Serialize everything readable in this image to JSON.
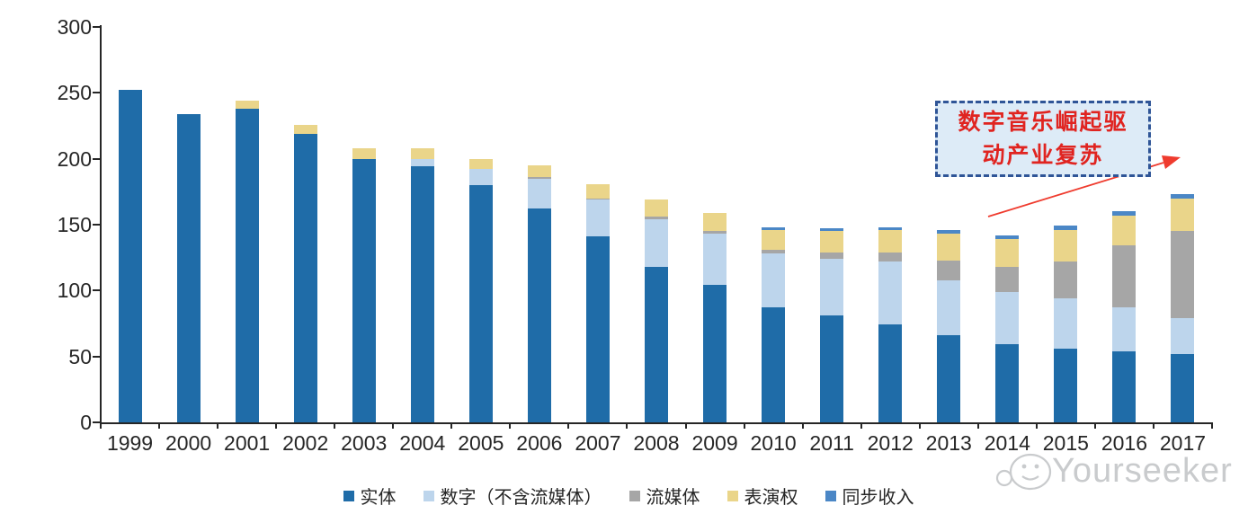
{
  "chart_data": {
    "type": "bar",
    "stacked": true,
    "title": "",
    "xlabel": "",
    "ylabel": "",
    "ylim": [
      0,
      300
    ],
    "yticks": [
      0,
      50,
      100,
      150,
      200,
      250,
      300
    ],
    "grid": false,
    "legend_position": "bottom",
    "categories": [
      "1999",
      "2000",
      "2001",
      "2002",
      "2003",
      "2004",
      "2005",
      "2006",
      "2007",
      "2008",
      "2009",
      "2010",
      "2011",
      "2012",
      "2013",
      "2014",
      "2015",
      "2016",
      "2017"
    ],
    "series": [
      {
        "name": "实体",
        "color": "#1F6CA8",
        "values": [
          252,
          234,
          238,
          219,
          200,
          194,
          180,
          162,
          141,
          118,
          104,
          87,
          81,
          74,
          66,
          59,
          56,
          54,
          52
        ]
      },
      {
        "name": "数字（不含流媒体）",
        "color": "#BDD5EC",
        "values": [
          0,
          0,
          0,
          0,
          0,
          6,
          12,
          23,
          28,
          36,
          39,
          41,
          43,
          48,
          42,
          40,
          38,
          33,
          27
        ]
      },
      {
        "name": "流媒体",
        "color": "#A6A6A6",
        "values": [
          0,
          0,
          0,
          0,
          0,
          0,
          0,
          1,
          1,
          2,
          2,
          3,
          5,
          7,
          15,
          19,
          28,
          47,
          66
        ]
      },
      {
        "name": "表演权",
        "color": "#EAD58A",
        "values": [
          0,
          0,
          6,
          7,
          8,
          8,
          8,
          9,
          11,
          13,
          14,
          15,
          16,
          17,
          20,
          21,
          24,
          23,
          25
        ]
      },
      {
        "name": "同步收入",
        "color": "#4B87C6",
        "values": [
          0,
          0,
          0,
          0,
          0,
          0,
          0,
          0,
          0,
          0,
          0,
          2,
          2,
          2,
          3,
          3,
          3,
          3,
          3
        ]
      }
    ]
  },
  "annotation": {
    "line1": "数字音乐崛起驱",
    "line2": "动产业复苏",
    "text_color": "#E02420",
    "border_color": "#2F5597",
    "fill_color": "#DDEBF7",
    "arrow_color": "#EF3B2E"
  },
  "watermark": {
    "brand": "Yourseeker"
  }
}
